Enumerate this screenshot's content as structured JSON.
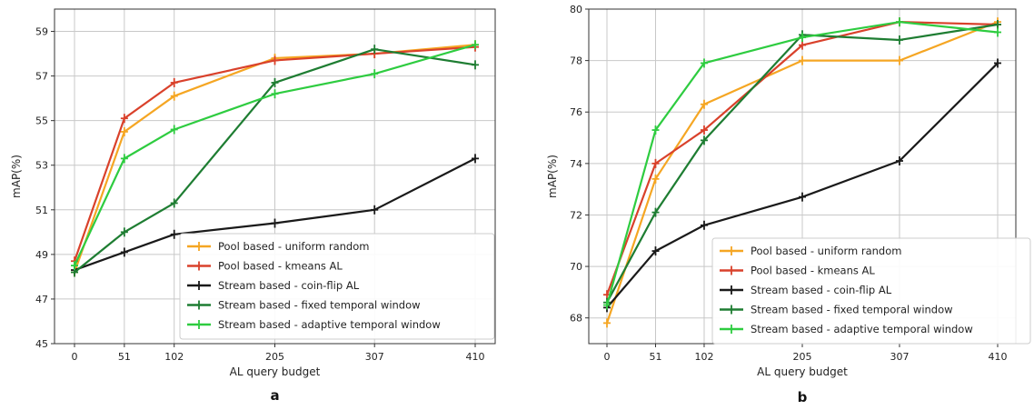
{
  "chart_data": [
    {
      "type": "line",
      "panel_label": "a",
      "xlabel": "AL query budget",
      "ylabel": "mAP(%)",
      "x": [
        0,
        51,
        102,
        205,
        307,
        410
      ],
      "x_ticks": [
        "0",
        "51",
        "102",
        "205",
        "307",
        "410"
      ],
      "ylim": [
        45,
        60
      ],
      "y_ticks": [
        "45",
        "47",
        "49",
        "51",
        "53",
        "55",
        "57",
        "59"
      ],
      "grid": true,
      "legend_position": "lower-right",
      "series": [
        {
          "name": "Pool based - uniform random",
          "color": "#f5a623",
          "values": [
            48.2,
            54.5,
            56.1,
            57.8,
            58.0,
            58.4
          ]
        },
        {
          "name": "Pool based - kmeans AL",
          "color": "#d9412b",
          "values": [
            48.7,
            55.1,
            56.7,
            57.7,
            58.0,
            58.3
          ]
        },
        {
          "name": "Stream based - coin-flip AL",
          "color": "#1a1a1a",
          "values": [
            48.3,
            49.1,
            49.9,
            50.4,
            51.0,
            53.3
          ]
        },
        {
          "name": "Stream based - fixed temporal window",
          "color": "#1e7d32",
          "values": [
            48.2,
            50.0,
            51.3,
            56.7,
            58.2,
            57.5
          ]
        },
        {
          "name": "Stream based - adaptive temporal window",
          "color": "#2ecc40",
          "values": [
            48.5,
            53.3,
            54.6,
            56.2,
            57.1,
            58.4
          ]
        }
      ]
    },
    {
      "type": "line",
      "panel_label": "b",
      "xlabel": "AL query budget",
      "ylabel": "mAP(%)",
      "x": [
        0,
        51,
        102,
        205,
        307,
        410
      ],
      "x_ticks": [
        "0",
        "51",
        "102",
        "205",
        "307",
        "410"
      ],
      "ylim": [
        67,
        80
      ],
      "y_ticks": [
        "68",
        "70",
        "72",
        "74",
        "76",
        "78",
        "80"
      ],
      "grid": true,
      "legend_position": "lower-right",
      "series": [
        {
          "name": "Pool based - uniform random",
          "color": "#f5a623",
          "values": [
            67.8,
            73.4,
            76.3,
            78.0,
            78.0,
            79.5
          ]
        },
        {
          "name": "Pool based - kmeans AL",
          "color": "#d9412b",
          "values": [
            68.9,
            74.0,
            75.3,
            78.6,
            79.5,
            79.4
          ]
        },
        {
          "name": "Stream based - coin-flip AL",
          "color": "#1a1a1a",
          "values": [
            68.4,
            70.6,
            71.6,
            72.7,
            74.1,
            77.9
          ]
        },
        {
          "name": "Stream based - fixed temporal window",
          "color": "#1e7d32",
          "values": [
            68.6,
            72.1,
            74.9,
            79.0,
            78.8,
            79.4
          ]
        },
        {
          "name": "Stream based - adaptive temporal window",
          "color": "#2ecc40",
          "values": [
            68.5,
            75.3,
            77.9,
            78.9,
            79.5,
            79.1
          ]
        }
      ]
    }
  ]
}
